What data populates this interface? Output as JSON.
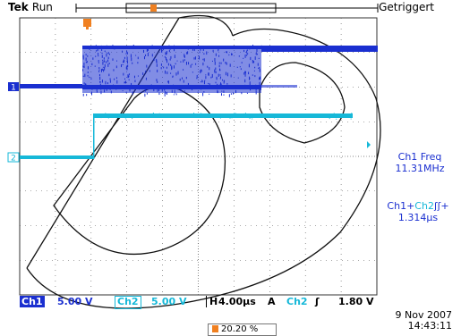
{
  "header": {
    "brand": "Tek",
    "mode": "Run",
    "trigger_status": "Getriggert"
  },
  "measurements": {
    "m1_label": "Ch1 Freq",
    "m1_value": "11.31MHz",
    "m2_label_a": "Ch1+",
    "m2_label_b": "Ch2",
    "m2_value": "1.314µs"
  },
  "status_bar": {
    "ch1_tag": "Ch1",
    "ch1_scale": "5.00 V",
    "ch2_tag": "Ch2",
    "ch2_scale": "5.00 V",
    "h_label": "H",
    "timebase": "4.00µs",
    "acq_label": "A",
    "trig_source": "Ch2",
    "trig_level": "1.80 V"
  },
  "date": "9 Nov 2007",
  "time": "14:43:11",
  "trigger_position": "20.20 %",
  "channel_markers": {
    "ch1": "1",
    "ch2": "2"
  },
  "colors": {
    "ch1": "#1a2fd0",
    "ch2": "#16b8d8",
    "trigger": "#f08020",
    "grid": "#555555"
  }
}
